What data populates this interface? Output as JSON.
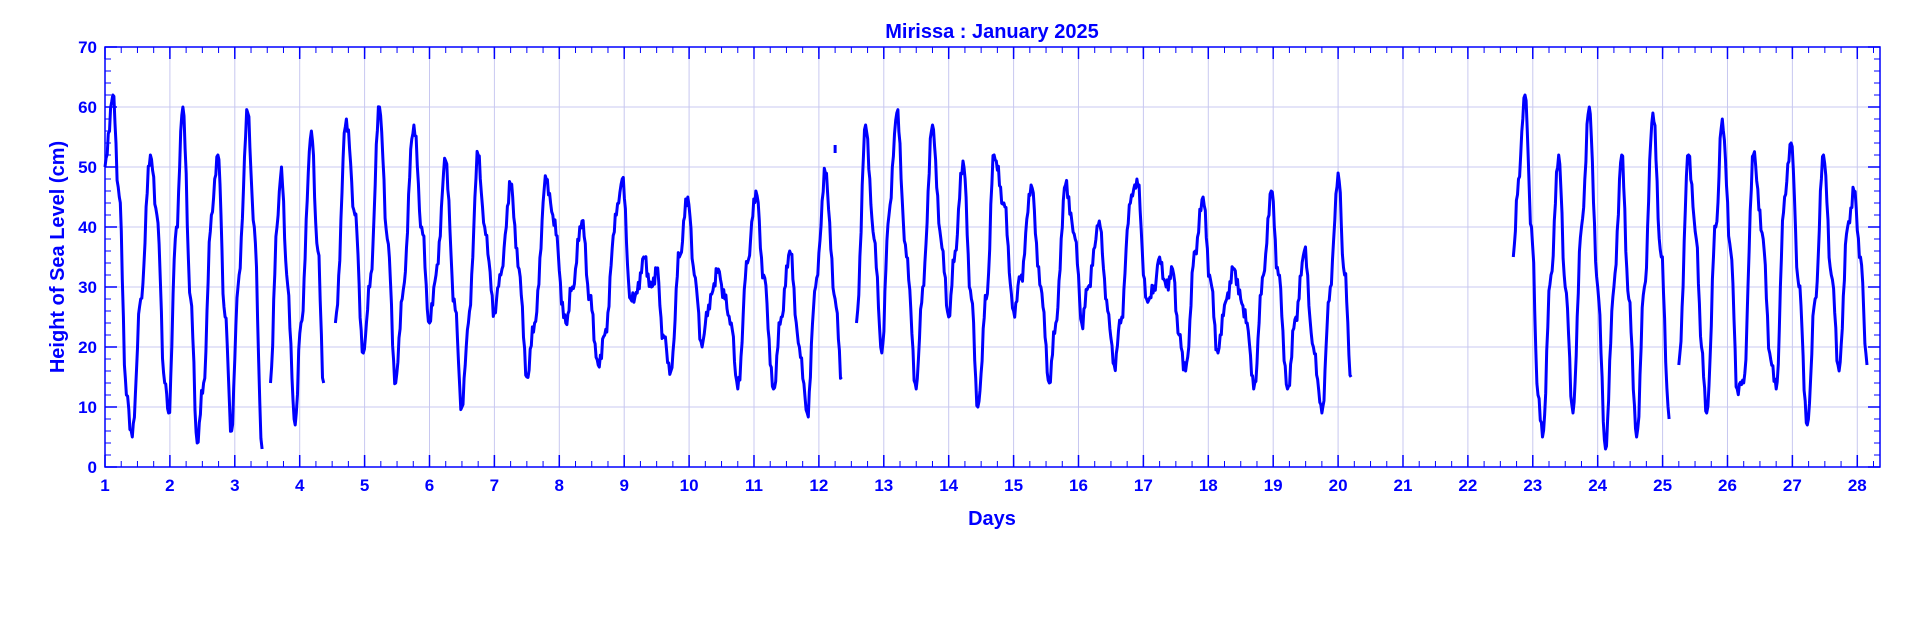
{
  "chart_data": {
    "type": "line",
    "title": "Mirissa : January 2025",
    "xlabel": "Days",
    "ylabel": "Height of Sea Level (cm)",
    "xlim": [
      1,
      28.35
    ],
    "ylim": [
      0,
      70
    ],
    "x_ticks": [
      1,
      2,
      3,
      4,
      5,
      6,
      7,
      8,
      9,
      10,
      11,
      12,
      13,
      14,
      15,
      16,
      17,
      18,
      19,
      20,
      21,
      22,
      23,
      24,
      25,
      26,
      27,
      28
    ],
    "y_ticks": [
      0,
      10,
      20,
      30,
      40,
      50,
      60,
      70
    ],
    "x_tick_labels": [
      "1",
      "2",
      "3",
      "4",
      "5",
      "6",
      "7",
      "8",
      "9",
      "10",
      "11",
      "12",
      "13",
      "14",
      "15",
      "16",
      "17",
      "18",
      "19",
      "20",
      "21",
      "22",
      "23",
      "24",
      "25",
      "26",
      "27",
      "28"
    ],
    "y_tick_labels": [
      "0",
      "10",
      "20",
      "30",
      "40",
      "50",
      "60",
      "70"
    ],
    "grid": true,
    "color": "#0000ff",
    "series": [
      {
        "segments": [
          [
            [
              1.0,
              50
            ],
            [
              1.12,
              62
            ],
            [
              1.22,
              45
            ],
            [
              1.33,
              12
            ],
            [
              1.42,
              5
            ],
            [
              1.55,
              28
            ],
            [
              1.7,
              52
            ],
            [
              1.8,
              42
            ],
            [
              1.92,
              14
            ],
            [
              1.98,
              9
            ],
            [
              2.1,
              40
            ],
            [
              2.2,
              60
            ],
            [
              2.32,
              28
            ],
            [
              2.42,
              4
            ],
            [
              2.52,
              14
            ],
            [
              2.64,
              42
            ],
            [
              2.74,
              52
            ],
            [
              2.85,
              25
            ],
            [
              2.95,
              6
            ],
            [
              3.05,
              30
            ],
            [
              3.2,
              59
            ],
            [
              3.3,
              40
            ],
            [
              3.42,
              3
            ]
          ],
          [
            [
              3.55,
              14
            ],
            [
              3.65,
              40
            ],
            [
              3.72,
              50
            ],
            [
              3.8,
              32
            ],
            [
              3.93,
              7
            ],
            [
              4.02,
              24
            ],
            [
              4.18,
              56
            ],
            [
              4.28,
              36
            ],
            [
              4.37,
              14
            ]
          ],
          [
            [
              4.55,
              24
            ],
            [
              4.72,
              58
            ],
            [
              4.85,
              42
            ],
            [
              4.98,
              19
            ],
            [
              5.08,
              30
            ],
            [
              5.23,
              60
            ],
            [
              5.35,
              38
            ],
            [
              5.48,
              14
            ],
            [
              5.58,
              28
            ],
            [
              5.76,
              57
            ],
            [
              5.88,
              40
            ],
            [
              6.0,
              24
            ],
            [
              6.1,
              32
            ],
            [
              6.25,
              51
            ],
            [
              6.38,
              28
            ],
            [
              6.5,
              10
            ],
            [
              6.6,
              24
            ],
            [
              6.75,
              52
            ],
            [
              6.85,
              40
            ],
            [
              7.0,
              26
            ],
            [
              7.1,
              32
            ],
            [
              7.25,
              47
            ],
            [
              7.38,
              33
            ],
            [
              7.5,
              15
            ],
            [
              7.62,
              24
            ],
            [
              7.8,
              48
            ],
            [
              7.9,
              42
            ],
            [
              8.1,
              24
            ],
            [
              8.2,
              30
            ],
            [
              8.35,
              41
            ],
            [
              8.47,
              28
            ],
            [
              8.6,
              17
            ],
            [
              8.7,
              22
            ],
            [
              8.88,
              42
            ],
            [
              8.97,
              48
            ],
            [
              9.1,
              28
            ],
            [
              9.2,
              29
            ],
            [
              9.3,
              35
            ],
            [
              9.42,
              30
            ],
            [
              9.5,
              33
            ],
            [
              9.6,
              22
            ],
            [
              9.72,
              16
            ],
            [
              9.85,
              35
            ],
            [
              9.98,
              45
            ],
            [
              10.08,
              32
            ],
            [
              10.2,
              20
            ],
            [
              10.3,
              27
            ],
            [
              10.45,
              33
            ],
            [
              10.55,
              28
            ],
            [
              10.65,
              24
            ],
            [
              10.75,
              13
            ],
            [
              10.9,
              34
            ],
            [
              11.03,
              46
            ],
            [
              11.15,
              32
            ],
            [
              11.3,
              13
            ],
            [
              11.42,
              25
            ],
            [
              11.55,
              36
            ],
            [
              11.7,
              20
            ],
            [
              11.82,
              9
            ],
            [
              11.95,
              30
            ],
            [
              12.1,
              49
            ],
            [
              12.25,
              28
            ],
            [
              12.35,
              15
            ]
          ],
          [
            [
              12.58,
              24
            ],
            [
              12.72,
              57
            ],
            [
              12.85,
              38
            ],
            [
              12.97,
              19
            ],
            [
              13.08,
              42
            ],
            [
              13.2,
              59
            ],
            [
              13.35,
              35
            ],
            [
              13.5,
              13
            ],
            [
              13.6,
              30
            ],
            [
              13.75,
              57
            ],
            [
              13.88,
              38
            ],
            [
              14.0,
              25
            ],
            [
              14.1,
              36
            ],
            [
              14.22,
              51
            ],
            [
              14.35,
              28
            ],
            [
              14.45,
              10
            ],
            [
              14.58,
              28
            ],
            [
              14.7,
              52
            ],
            [
              14.85,
              44
            ],
            [
              15.0,
              26
            ],
            [
              15.12,
              32
            ],
            [
              15.27,
              47
            ],
            [
              15.42,
              30
            ],
            [
              15.55,
              14
            ],
            [
              15.65,
              24
            ],
            [
              15.8,
              47
            ],
            [
              15.95,
              38
            ],
            [
              16.05,
              24
            ],
            [
              16.15,
              30
            ],
            [
              16.32,
              41
            ],
            [
              16.45,
              26
            ],
            [
              16.55,
              17
            ],
            [
              16.65,
              24
            ],
            [
              16.8,
              44
            ],
            [
              16.9,
              48
            ],
            [
              17.05,
              28
            ],
            [
              17.15,
              29
            ],
            [
              17.25,
              35
            ],
            [
              17.35,
              30
            ],
            [
              17.45,
              33
            ],
            [
              17.55,
              22
            ],
            [
              17.65,
              16
            ],
            [
              17.8,
              36
            ],
            [
              17.92,
              45
            ],
            [
              18.02,
              32
            ],
            [
              18.15,
              19
            ],
            [
              18.25,
              27
            ],
            [
              18.4,
              33
            ],
            [
              18.5,
              28
            ],
            [
              18.6,
              24
            ],
            [
              18.7,
              13
            ],
            [
              18.85,
              32
            ],
            [
              18.97,
              46
            ],
            [
              19.08,
              32
            ],
            [
              19.22,
              13
            ],
            [
              19.35,
              25
            ],
            [
              19.48,
              36
            ],
            [
              19.62,
              20
            ],
            [
              19.75,
              9
            ],
            [
              19.88,
              30
            ],
            [
              20.0,
              49
            ],
            [
              20.1,
              32
            ],
            [
              20.2,
              15
            ]
          ],
          [
            [
              22.7,
              35
            ],
            [
              22.78,
              48
            ],
            [
              22.88,
              62
            ],
            [
              22.98,
              40
            ],
            [
              23.08,
              12
            ],
            [
              23.15,
              5
            ],
            [
              23.28,
              32
            ],
            [
              23.4,
              52
            ],
            [
              23.5,
              30
            ],
            [
              23.62,
              9
            ],
            [
              23.75,
              40
            ],
            [
              23.87,
              60
            ],
            [
              24.0,
              30
            ],
            [
              24.12,
              3
            ],
            [
              24.25,
              30
            ],
            [
              24.37,
              52
            ],
            [
              24.48,
              28
            ],
            [
              24.6,
              5
            ],
            [
              24.72,
              30
            ],
            [
              24.85,
              59
            ],
            [
              24.98,
              35
            ],
            [
              25.1,
              8
            ]
          ],
          [
            [
              25.25,
              17
            ],
            [
              25.4,
              52
            ],
            [
              25.52,
              38
            ],
            [
              25.6,
              20
            ],
            [
              25.68,
              9
            ],
            [
              25.82,
              40
            ],
            [
              25.92,
              58
            ],
            [
              26.05,
              36
            ],
            [
              26.15,
              13
            ],
            [
              26.25,
              14
            ],
            [
              26.4,
              52
            ],
            [
              26.55,
              38
            ],
            [
              26.65,
              19
            ],
            [
              26.75,
              13
            ],
            [
              26.88,
              45
            ],
            [
              26.98,
              54
            ],
            [
              27.1,
              30
            ],
            [
              27.23,
              7
            ],
            [
              27.35,
              28
            ],
            [
              27.48,
              52
            ],
            [
              27.6,
              32
            ],
            [
              27.72,
              16
            ],
            [
              27.85,
              40
            ],
            [
              27.95,
              46
            ],
            [
              28.05,
              35
            ],
            [
              28.15,
              17
            ]
          ]
        ],
        "isolated_points": [
          [
            12.25,
            53
          ]
        ]
      }
    ]
  }
}
